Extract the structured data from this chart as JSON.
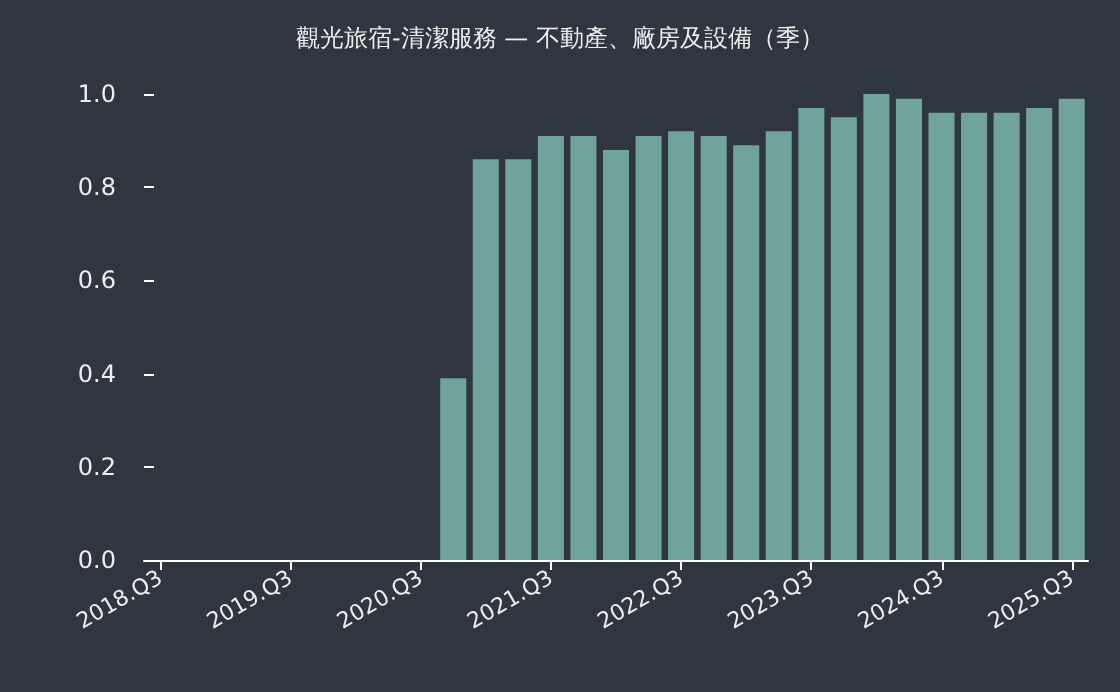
{
  "chart_data": {
    "type": "bar",
    "title": "觀光旅宿-清潔服務 — 不動產、廠房及設備（季）",
    "categories": [
      "2018.Q3",
      null,
      null,
      null,
      "2019.Q3",
      null,
      null,
      null,
      "2020.Q3",
      null,
      null,
      null,
      "2021.Q3",
      null,
      null,
      null,
      "2022.Q3",
      null,
      null,
      null,
      "2023.Q3",
      null,
      null,
      null,
      "2024.Q3",
      null,
      null,
      null,
      "2025.Q3"
    ],
    "values": [
      null,
      null,
      null,
      null,
      null,
      null,
      null,
      null,
      null,
      0.39,
      0.86,
      0.86,
      0.91,
      0.91,
      0.88,
      0.91,
      0.92,
      0.91,
      0.89,
      0.92,
      0.97,
      0.95,
      1.0,
      0.99,
      0.96,
      0.96,
      0.96,
      0.97,
      0.99
    ],
    "color": "#6fa39b",
    "ylim": [
      0,
      1.0
    ],
    "yticks": [
      {
        "value": 0,
        "label": "0.0"
      },
      {
        "value": 0.2,
        "label": "0.2"
      },
      {
        "value": 0.4,
        "label": "0.4"
      },
      {
        "value": 0.6,
        "label": "0.6"
      },
      {
        "value": 0.8,
        "label": "0.8"
      },
      {
        "value": 1.0,
        "label": "1.0"
      }
    ],
    "grid": false
  }
}
